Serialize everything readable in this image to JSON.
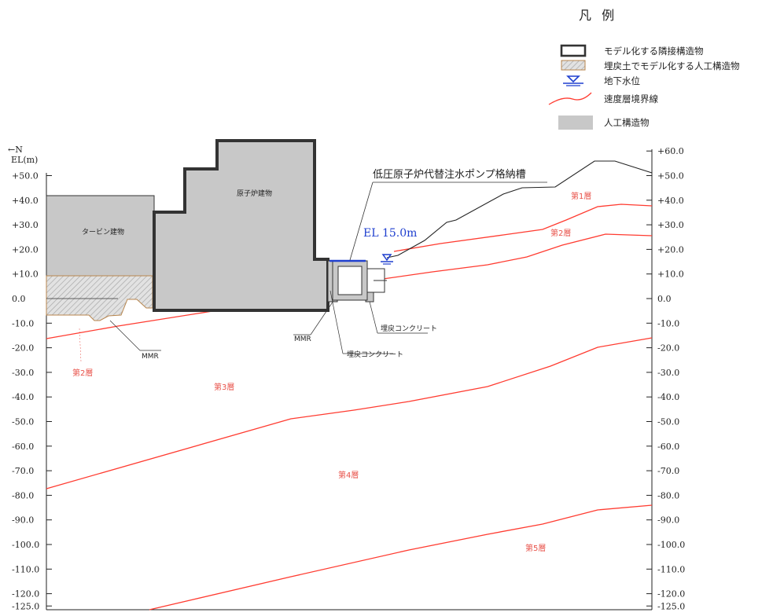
{
  "legend": {
    "title": "凡 例",
    "items": [
      {
        "label": "モデル化する隣接構造物",
        "icon": "thick-outline-box-icon"
      },
      {
        "label": "埋戻土でモデル化する人工構造物",
        "icon": "hatched-box-icon"
      },
      {
        "label": "地下水位",
        "icon": "groundwater-triangle-icon"
      },
      {
        "label": "速度層境界線",
        "icon": "red-curve-icon"
      },
      {
        "label": "人工構造物",
        "icon": "gray-box-icon"
      }
    ]
  },
  "axis": {
    "north_label": "←N",
    "unit_label": "EL(m)",
    "left_ticks": [
      "+50.0",
      "+40.0",
      "+30.0",
      "+20.0",
      "+10.0",
      "0.0",
      "-10.0",
      "-20.0",
      "-30.0",
      "-40.0",
      "-50.0",
      "-60.0",
      "-70.0",
      "-80.0",
      "-90.0",
      "-100.0",
      "-110.0",
      "-120.0",
      "-125.0"
    ],
    "right_ticks": [
      "+60.0",
      "+50.0",
      "+40.0",
      "+30.0",
      "+20.0",
      "+10.0",
      "0.0",
      "-10.0",
      "-20.0",
      "-30.0",
      "-40.0",
      "-50.0",
      "-60.0",
      "-70.0",
      "-80.0",
      "-90.0",
      "-100.0",
      "-110.0",
      "-120.0",
      "-125.0"
    ]
  },
  "structures": {
    "turbine": "タービン建物",
    "reactor": "原子炉建物",
    "pump_pit": "低圧原子炉代替注水ポンプ格納槽",
    "el_label": "EL 15.0m",
    "mmr_left": "MMR",
    "mmr_right": "MMR",
    "backfill_concrete_1": "埋戻コンクリート",
    "backfill_concrete_2": "埋戻コンクリート"
  },
  "layers": {
    "layer1": "第1層",
    "layer2_right": "第2層",
    "layer2_left": "第2層",
    "layer3": "第3層",
    "layer4": "第4層",
    "layer5": "第5層"
  },
  "colors": {
    "boundary": "#ff3b30",
    "layer_text": "#e8524a",
    "structure_fill": "#c8c8c8",
    "water_level": "#1f3fcf",
    "backfill_hatch": "#b8864e"
  }
}
